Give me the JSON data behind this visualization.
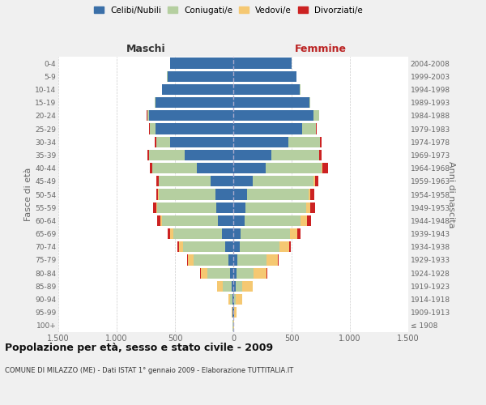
{
  "age_groups": [
    "100+",
    "95-99",
    "90-94",
    "85-89",
    "80-84",
    "75-79",
    "70-74",
    "65-69",
    "60-64",
    "55-59",
    "50-54",
    "45-49",
    "40-44",
    "35-39",
    "30-34",
    "25-29",
    "20-24",
    "15-19",
    "10-14",
    "5-9",
    "0-4"
  ],
  "birth_years": [
    "≤ 1908",
    "1909-1913",
    "1914-1918",
    "1919-1923",
    "1924-1928",
    "1929-1933",
    "1934-1938",
    "1939-1943",
    "1944-1948",
    "1949-1953",
    "1954-1958",
    "1959-1963",
    "1964-1968",
    "1969-1973",
    "1974-1978",
    "1979-1983",
    "1984-1988",
    "1989-1993",
    "1994-1998",
    "1999-2003",
    "2004-2008"
  ],
  "colors": {
    "celibe": "#3a6fa8",
    "coniugato": "#b5cfa0",
    "vedovo": "#f5c872",
    "divorziato": "#cc2222"
  },
  "males": {
    "celibe": [
      2,
      4,
      8,
      15,
      25,
      40,
      70,
      95,
      130,
      145,
      155,
      195,
      310,
      415,
      540,
      670,
      720,
      665,
      610,
      565,
      540
    ],
    "coniugato": [
      2,
      6,
      18,
      75,
      195,
      300,
      360,
      420,
      480,
      505,
      485,
      445,
      385,
      305,
      120,
      45,
      18,
      8,
      4,
      2,
      1
    ],
    "vedovo": [
      1,
      4,
      18,
      48,
      58,
      48,
      38,
      28,
      18,
      9,
      4,
      2,
      1,
      1,
      1,
      1,
      1,
      0,
      0,
      0,
      0
    ],
    "divorziato": [
      0,
      0,
      1,
      2,
      4,
      8,
      13,
      18,
      28,
      28,
      18,
      18,
      18,
      13,
      13,
      4,
      2,
      0,
      0,
      0,
      0
    ]
  },
  "females": {
    "nubile": [
      1,
      4,
      8,
      18,
      28,
      38,
      55,
      65,
      95,
      105,
      115,
      165,
      275,
      325,
      470,
      590,
      690,
      650,
      570,
      540,
      500
    ],
    "coniugata": [
      2,
      4,
      13,
      55,
      145,
      250,
      340,
      420,
      480,
      520,
      530,
      520,
      480,
      410,
      270,
      120,
      45,
      13,
      4,
      2,
      1
    ],
    "vedova": [
      4,
      18,
      55,
      95,
      115,
      95,
      85,
      65,
      55,
      38,
      18,
      13,
      8,
      4,
      2,
      1,
      1,
      0,
      0,
      0,
      0
    ],
    "divorziata": [
      0,
      0,
      1,
      2,
      4,
      8,
      13,
      23,
      38,
      38,
      28,
      33,
      48,
      18,
      13,
      4,
      2,
      0,
      0,
      0,
      0
    ]
  },
  "title": "Popolazione per età, sesso e stato civile - 2009",
  "subtitle": "COMUNE DI MILAZZO (ME) - Dati ISTAT 1° gennaio 2009 - Elaborazione TUTTITALIA.IT",
  "xlabel_left": "Maschi",
  "xlabel_right": "Femmine",
  "ylabel_left": "Fasce di età",
  "ylabel_right": "Anni di nascita",
  "xlim": 1500,
  "background_color": "#f0f0f0",
  "bar_background": "#ffffff",
  "grid_color": "#cccccc",
  "legend_labels": [
    "Celibi/Nubili",
    "Coniugati/e",
    "Vedovi/e",
    "Divorziati/e"
  ]
}
